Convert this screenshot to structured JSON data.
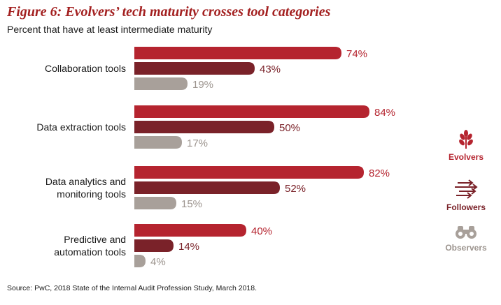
{
  "title": "Figure 6: Evolvers’ tech maturity crosses tool categories",
  "subtitle": "Percent that have at least intermediate maturity",
  "source": "Source: PwC, 2018 State of the Internal Audit Profession Study, March 2018.",
  "colors": {
    "evolvers": "#b5242f",
    "followers": "#7a2229",
    "observers": "#a8a09a",
    "evolvers_label": "#b5242f",
    "followers_label": "#7a2229",
    "observers_label": "#9c948e"
  },
  "legend": [
    {
      "label": "Evolvers",
      "icon": "wheat-icon"
    },
    {
      "label": "Followers",
      "icon": "arrows-icon"
    },
    {
      "label": "Observers",
      "icon": "binoculars-icon"
    }
  ],
  "chart_data": {
    "type": "bar",
    "orientation": "horizontal",
    "title": "Figure 6: Evolvers’ tech maturity crosses tool categories",
    "subtitle": "Percent that have at least intermediate maturity",
    "categories": [
      [
        "Collaboration tools"
      ],
      [
        "Data extraction tools"
      ],
      [
        "Data analytics and",
        "monitoring tools"
      ],
      [
        "Predictive and",
        "automation tools"
      ]
    ],
    "series": [
      {
        "name": "Evolvers",
        "values": [
          74,
          84,
          82,
          40
        ],
        "labels": [
          "74%",
          "84%",
          "82%",
          "40%"
        ]
      },
      {
        "name": "Followers",
        "values": [
          43,
          50,
          52,
          14
        ],
        "labels": [
          "43%",
          "50%",
          "52%",
          "14%"
        ]
      },
      {
        "name": "Observers",
        "values": [
          19,
          17,
          15,
          4
        ],
        "labels": [
          "19%",
          "17%",
          "15%",
          "4%"
        ]
      }
    ],
    "xlim": [
      0,
      100
    ],
    "grid": false,
    "legend_position": "right"
  }
}
